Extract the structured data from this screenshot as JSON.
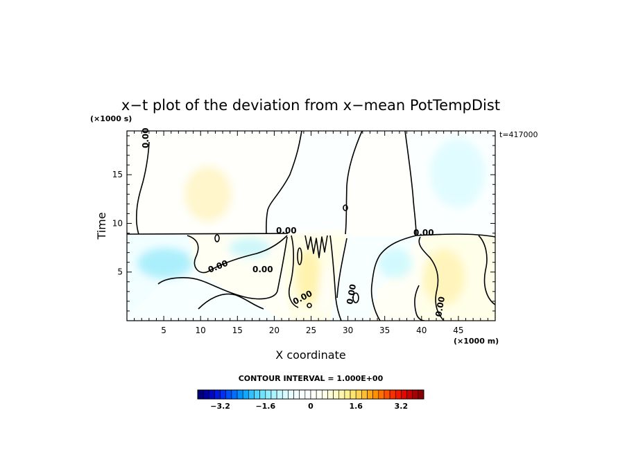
{
  "chart_data": {
    "type": "heatmap",
    "title": "x−t plot of the deviation from x−mean PotTempDist",
    "xlabel": "X coordinate",
    "ylabel": "Time",
    "x_unit": "(×1000 m)",
    "y_unit": "(×1000 s)",
    "time_stamp": "t=417000",
    "xlim": [
      0,
      50
    ],
    "ylim": [
      0,
      19.5
    ],
    "x_ticks": [
      {
        "v": 5,
        "label": "5"
      },
      {
        "v": 10,
        "label": "10"
      },
      {
        "v": 15,
        "label": "15"
      },
      {
        "v": 20,
        "label": "20"
      },
      {
        "v": 25,
        "label": "25"
      },
      {
        "v": 30,
        "label": "30"
      },
      {
        "v": 35,
        "label": "35"
      },
      {
        "v": 40,
        "label": "40"
      },
      {
        "v": 45,
        "label": "45"
      }
    ],
    "y_ticks": [
      {
        "v": 5,
        "label": "5"
      },
      {
        "v": 10,
        "label": "10"
      },
      {
        "v": 15,
        "label": "15"
      }
    ],
    "contour_label": "0.00",
    "contour_interval_text": "CONTOUR INTERVAL = 1.000E+00",
    "colorbar": {
      "min": -4.0,
      "max": 4.0,
      "step": 0.2,
      "tick_labels": [
        {
          "v": -3.2,
          "label": "−3.2"
        },
        {
          "v": -1.6,
          "label": "−1.6"
        },
        {
          "v": 0,
          "label": "0"
        },
        {
          "v": 1.6,
          "label": "1.6"
        },
        {
          "v": 3.2,
          "label": "3.2"
        }
      ],
      "colors": [
        "#00007a",
        "#0000a0",
        "#0008c0",
        "#0018e0",
        "#0030f0",
        "#0050f8",
        "#0070fc",
        "#0090ff",
        "#10a8ff",
        "#30c0ff",
        "#50d4ff",
        "#70e4ff",
        "#90eeff",
        "#acf4ff",
        "#c4f8ff",
        "#d8fbff",
        "#e8fdff",
        "#f2feff",
        "#f8ffff",
        "#fcffff",
        "#fffffc",
        "#fffff4",
        "#fffee8",
        "#fffcd8",
        "#fffac4",
        "#fff6ac",
        "#fff090",
        "#ffe470",
        "#ffd450",
        "#ffc030",
        "#ffa810",
        "#ff9000",
        "#ff7000",
        "#ff5000",
        "#f83000",
        "#f01800",
        "#e00800",
        "#c80000",
        "#a80000",
        "#880000"
      ]
    },
    "regions": [
      {
        "sign": "positive",
        "value": 0.15,
        "bounds": "upper left, x 1.5-23, t 9.2-19.5"
      },
      {
        "sign": "negative",
        "value": -0.1,
        "bounds": "upper center, x 19-31, t 9.2-19.5"
      },
      {
        "sign": "positive",
        "value": 0.1,
        "bounds": "upper right-center, x 30-39, t 9.2-19.5"
      },
      {
        "sign": "negative",
        "value": -0.15,
        "bounds": "upper right, x 38-50, t 9-19.5"
      },
      {
        "sign": "negative",
        "value": -0.5,
        "bounds": "lower left, x 0-11, t 0-9"
      },
      {
        "sign": "positive",
        "value": 0.3,
        "bounds": "lower left-center, x 9-21, t 3-9"
      },
      {
        "sign": "negative",
        "value": -0.2,
        "bounds": "lower center, x 12-20, t 0-4"
      },
      {
        "sign": "positive",
        "value": 0.4,
        "bounds": "lower center, x 21-30, t 0-9"
      },
      {
        "sign": "negative",
        "value": -0.3,
        "bounds": "lower right-center, x 30-40, t 0-9"
      },
      {
        "sign": "positive",
        "value": 0.4,
        "bounds": "lower right, x 40-50, t 0-9"
      }
    ]
  }
}
